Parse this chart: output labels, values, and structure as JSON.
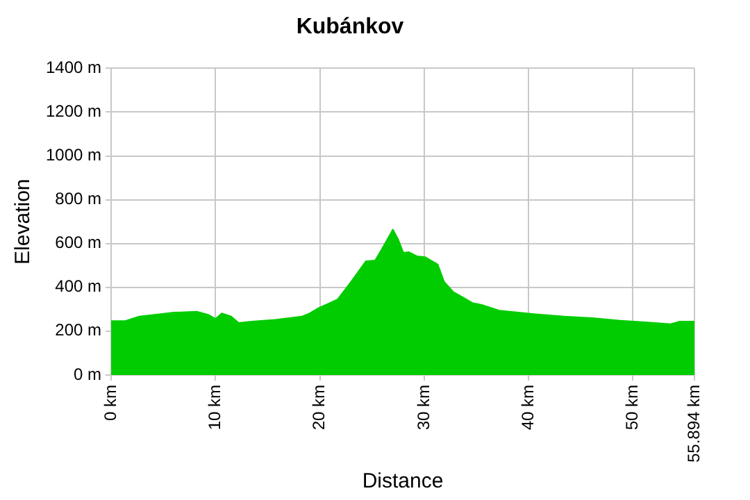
{
  "chart_data": {
    "type": "area",
    "title": "Kubánkov",
    "xlabel": "Distance",
    "ylabel": "Elevation",
    "xlim": [
      0,
      55.894
    ],
    "ylim": [
      0,
      1400
    ],
    "xticks": [
      {
        "value": 0,
        "label": "0 km"
      },
      {
        "value": 10,
        "label": "10 km"
      },
      {
        "value": 20,
        "label": "20 km"
      },
      {
        "value": 30,
        "label": "30 km"
      },
      {
        "value": 40,
        "label": "40 km"
      },
      {
        "value": 50,
        "label": "50 km"
      },
      {
        "value": 55.894,
        "label": "55.894 km"
      }
    ],
    "yticks": [
      {
        "value": 0,
        "label": "0 m"
      },
      {
        "value": 200,
        "label": "200 m"
      },
      {
        "value": 400,
        "label": "400 m"
      },
      {
        "value": 600,
        "label": "600 m"
      },
      {
        "value": 800,
        "label": "800 m"
      },
      {
        "value": 1000,
        "label": "1000 m"
      },
      {
        "value": 1200,
        "label": "1200 m"
      },
      {
        "value": 1400,
        "label": "1400 m"
      }
    ],
    "grid": true,
    "legend": false,
    "marker": "none",
    "series": [
      {
        "color": "#00cc00",
        "x": [
          0,
          1.3,
          2.7,
          4.6,
          6.0,
          8.2,
          9.3,
          10.0,
          10.6,
          11.5,
          12.2,
          13.5,
          15.7,
          18.3,
          19.0,
          19.9,
          20.8,
          21.7,
          23.0,
          24.4,
          25.3,
          25.9,
          27.0,
          27.5,
          28.0,
          28.5,
          29.3,
          30.1,
          31.3,
          31.9,
          32.8,
          33.9,
          34.6,
          35.5,
          35.9,
          37.2,
          40.3,
          43.4,
          46.1,
          48.8,
          51.4,
          53.6,
          54.5,
          55.894
        ],
        "values": [
          246,
          246,
          267,
          277,
          285,
          289,
          275,
          256,
          281,
          267,
          238,
          244,
          252,
          267,
          281,
          306,
          325,
          345,
          426,
          519,
          523,
          571,
          664,
          619,
          558,
          561,
          542,
          538,
          504,
          426,
          378,
          349,
          329,
          320,
          314,
          294,
          279,
          267,
          260,
          248,
          240,
          232,
          244,
          244
        ]
      }
    ]
  }
}
